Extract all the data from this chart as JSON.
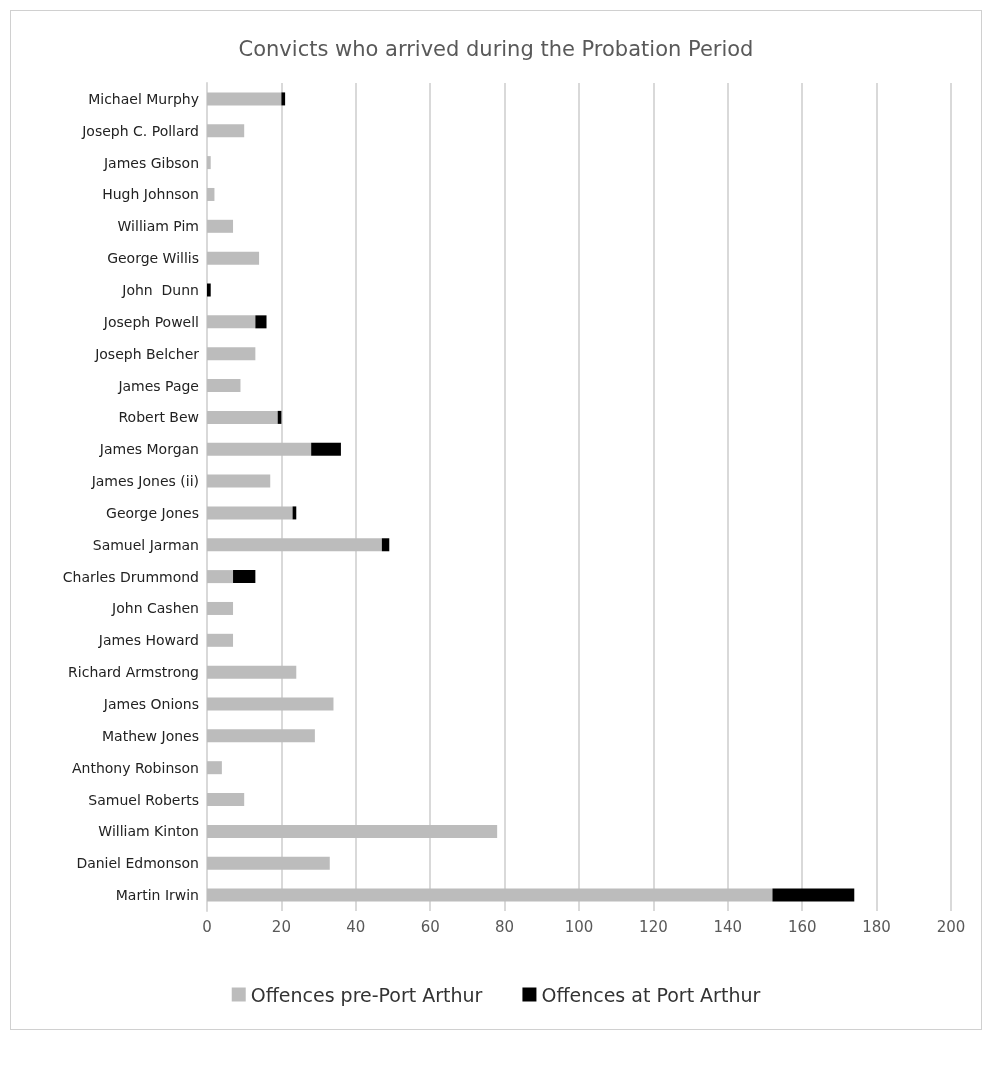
{
  "chart_data": {
    "type": "bar",
    "title": "Convicts who arrived during the Probation Period",
    "orientation": "horizontal",
    "stacked": true,
    "categories": [
      "Michael Murphy",
      "Joseph C. Pollard",
      "James Gibson",
      "Hugh Johnson",
      "William Pim",
      "George Willis",
      "John  Dunn",
      "Joseph Powell",
      "Joseph Belcher",
      "James Page",
      "Robert Bew",
      "James Morgan",
      "James Jones (ii)",
      "George Jones",
      "Samuel Jarman",
      "Charles Drummond",
      "John Cashen",
      "James Howard",
      "Richard Armstrong",
      "James Onions",
      "Mathew Jones",
      "Anthony Robinson",
      "Samuel Roberts",
      "William Kinton",
      "Daniel Edmonson",
      "Martin Irwin"
    ],
    "series": [
      {
        "name": "Offences pre-Port Arthur",
        "color": "#bcbcbc",
        "values": [
          20,
          10,
          1,
          2,
          7,
          14,
          0,
          13,
          13,
          9,
          19,
          28,
          17,
          23,
          47,
          7,
          7,
          7,
          24,
          34,
          29,
          4,
          10,
          78,
          33,
          152
        ]
      },
      {
        "name": "Offences at Port Arthur",
        "color": "#000000",
        "values": [
          1,
          0,
          0,
          0,
          0,
          0,
          1,
          3,
          0,
          0,
          1,
          8,
          0,
          1,
          2,
          6,
          0,
          0,
          0,
          0,
          0,
          0,
          0,
          0,
          0,
          22
        ]
      }
    ],
    "xlim": [
      0,
      200
    ],
    "xticks": [
      0,
      20,
      40,
      60,
      80,
      100,
      120,
      140,
      160,
      180,
      200
    ],
    "grid": "x",
    "legend": "bottom"
  }
}
